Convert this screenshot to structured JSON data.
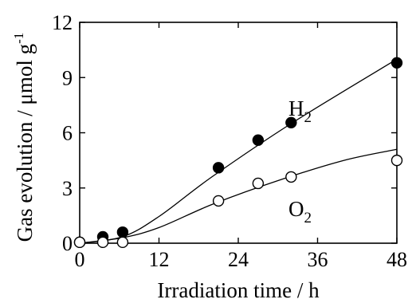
{
  "chart_data": {
    "type": "scatter",
    "xlabel": "Irradiation time / h",
    "ylabel": "Gas evolution / μmol g",
    "ylabel_superscript": "-1",
    "xlim": [
      0,
      48
    ],
    "ylim": [
      0,
      12
    ],
    "x_ticks": [
      "0",
      "12",
      "24",
      "36",
      "48"
    ],
    "y_ticks": [
      "0",
      "3",
      "6",
      "9",
      "12"
    ],
    "grid": false,
    "series": [
      {
        "name": "H",
        "name_subscript": "2",
        "marker": "filled-circle",
        "color": "#000000",
        "points": [
          {
            "x": 0,
            "y": 0.05
          },
          {
            "x": 3.5,
            "y": 0.35
          },
          {
            "x": 6.5,
            "y": 0.6
          },
          {
            "x": 21,
            "y": 4.1
          },
          {
            "x": 27,
            "y": 5.6
          },
          {
            "x": 32,
            "y": 6.55
          },
          {
            "x": 48,
            "y": 9.8
          }
        ],
        "fit": [
          {
            "x": 0,
            "y": 0
          },
          {
            "x": 6.5,
            "y": 0.35
          },
          {
            "x": 12,
            "y": 1.45
          },
          {
            "x": 20,
            "y": 3.6
          },
          {
            "x": 32,
            "y": 6.5
          },
          {
            "x": 48,
            "y": 10.0
          }
        ]
      },
      {
        "name": "O",
        "name_subscript": "2",
        "marker": "open-circle",
        "color": "#000000",
        "points": [
          {
            "x": 0,
            "y": 0.05
          },
          {
            "x": 3.5,
            "y": 0.05
          },
          {
            "x": 6.5,
            "y": 0.05
          },
          {
            "x": 21,
            "y": 2.3
          },
          {
            "x": 27,
            "y": 3.25
          },
          {
            "x": 32,
            "y": 3.6
          },
          {
            "x": 48,
            "y": 4.5
          }
        ],
        "fit": [
          {
            "x": 0,
            "y": 0
          },
          {
            "x": 6.5,
            "y": 0.3
          },
          {
            "x": 12,
            "y": 0.85
          },
          {
            "x": 20,
            "y": 2.1
          },
          {
            "x": 30,
            "y": 3.4
          },
          {
            "x": 40,
            "y": 4.5
          },
          {
            "x": 48,
            "y": 5.1
          }
        ]
      }
    ]
  }
}
